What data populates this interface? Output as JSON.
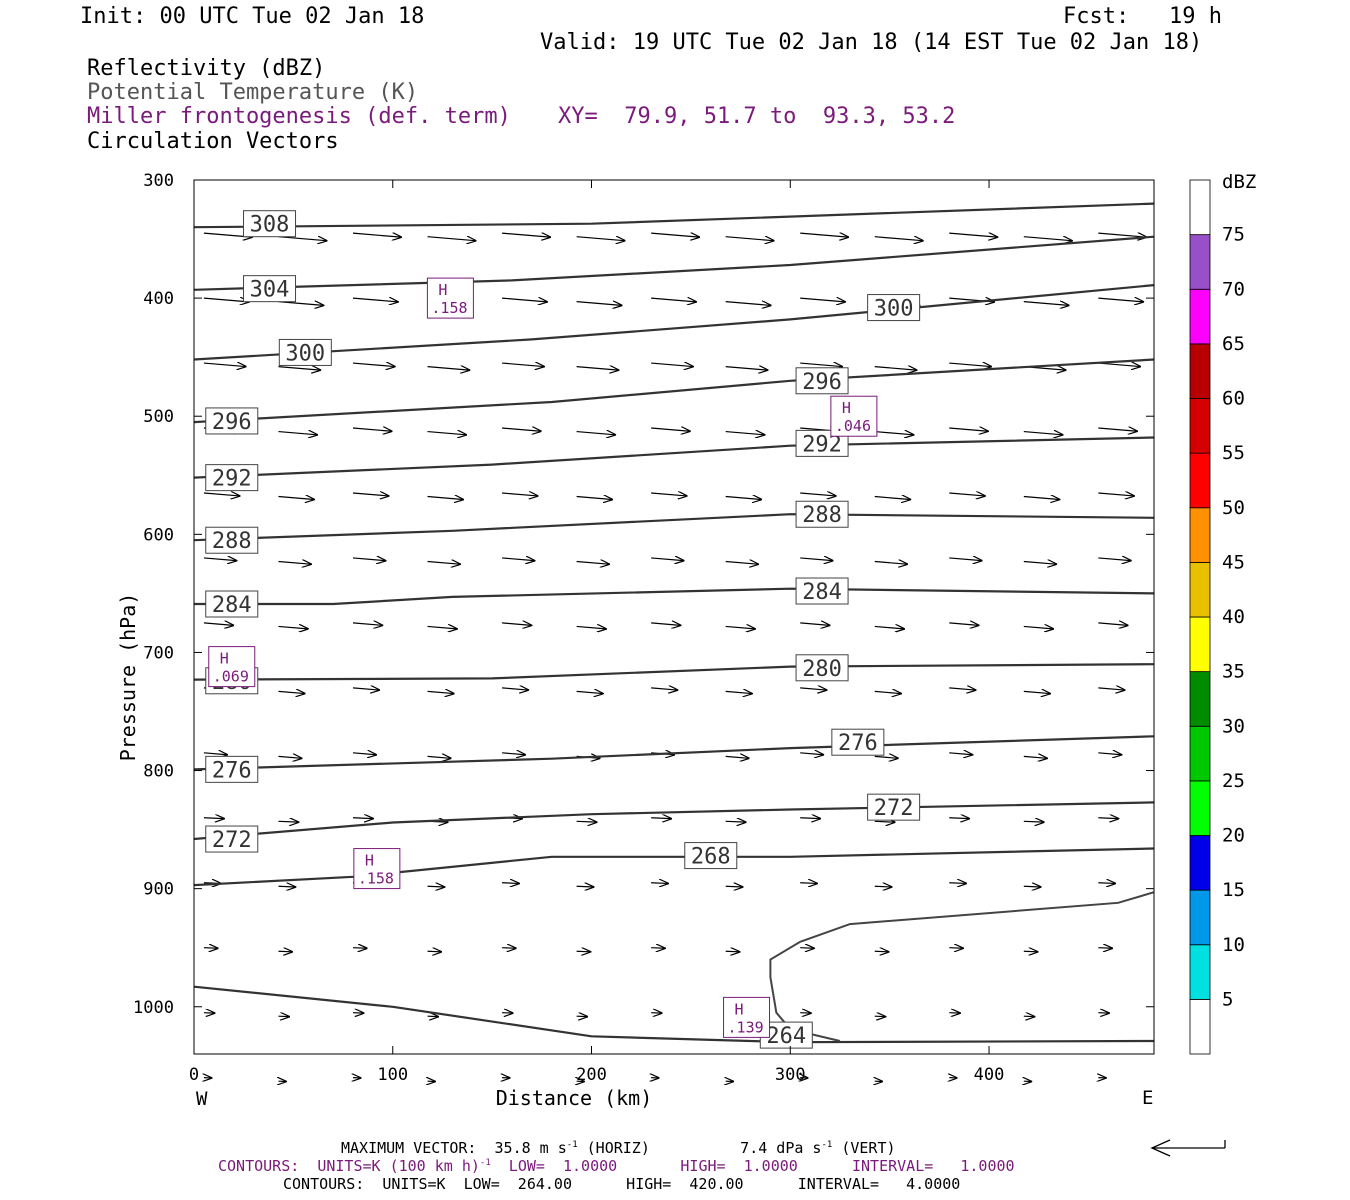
{
  "header": {
    "init": "Init: 00 UTC Tue 02 Jan 18",
    "fcst": "Fcst:   19 h",
    "valid": "Valid: 19 UTC Tue 02 Jan 18 (14 EST Tue 02 Jan 18)",
    "field1": "Reflectivity (dBZ)",
    "field2": "Potential Temperature (K)",
    "field3": "Miller frontogenesis (def. term)",
    "xy": "XY=  79.9, 51.7 to  93.3, 53.2",
    "field4": "Circulation Vectors"
  },
  "chart_data": {
    "type": "line",
    "xlabel": "Distance (km)",
    "ylabel": "Pressure (hPa)",
    "xlim": [
      0,
      483
    ],
    "ylim": [
      1040,
      300
    ],
    "x_ticks": [
      "0",
      "100",
      "200",
      "300",
      "400"
    ],
    "y_ticks": [
      "300",
      "400",
      "500",
      "600",
      "700",
      "800",
      "900",
      "1000"
    ],
    "x_end_labels": {
      "left": "W",
      "right": "E"
    },
    "series": [
      {
        "name": "308",
        "points": [
          [
            0,
            340
          ],
          [
            200,
            337
          ],
          [
            483,
            320
          ]
        ]
      },
      {
        "name": "304",
        "points": [
          [
            0,
            393
          ],
          [
            160,
            385
          ],
          [
            300,
            372
          ],
          [
            483,
            348
          ]
        ]
      },
      {
        "name": "300",
        "points": [
          [
            0,
            452
          ],
          [
            170,
            435
          ],
          [
            300,
            418
          ],
          [
            483,
            389
          ]
        ]
      },
      {
        "name": "296",
        "points": [
          [
            0,
            505
          ],
          [
            180,
            488
          ],
          [
            300,
            470
          ],
          [
            483,
            452
          ]
        ]
      },
      {
        "name": "292",
        "points": [
          [
            0,
            552
          ],
          [
            150,
            541
          ],
          [
            300,
            525
          ],
          [
            483,
            518
          ]
        ]
      },
      {
        "name": "288",
        "points": [
          [
            0,
            605
          ],
          [
            130,
            597
          ],
          [
            300,
            583
          ],
          [
            483,
            586
          ]
        ]
      },
      {
        "name": "284",
        "points": [
          [
            0,
            659
          ],
          [
            70,
            659
          ],
          [
            130,
            653
          ],
          [
            300,
            646
          ],
          [
            483,
            650
          ]
        ]
      },
      {
        "name": "280",
        "points": [
          [
            0,
            723
          ],
          [
            150,
            722
          ],
          [
            300,
            712
          ],
          [
            483,
            710
          ]
        ]
      },
      {
        "name": "276",
        "points": [
          [
            0,
            799
          ],
          [
            180,
            790
          ],
          [
            300,
            781
          ],
          [
            483,
            771
          ]
        ]
      },
      {
        "name": "272",
        "points": [
          [
            0,
            858
          ],
          [
            100,
            844
          ],
          [
            200,
            837
          ],
          [
            300,
            833
          ],
          [
            483,
            827
          ]
        ]
      },
      {
        "name": "268",
        "points": [
          [
            0,
            897
          ],
          [
            80,
            890
          ],
          [
            180,
            873
          ],
          [
            300,
            873
          ],
          [
            483,
            866
          ]
        ]
      },
      {
        "name": "264",
        "points": [
          [
            0,
            983
          ],
          [
            100,
            1000
          ],
          [
            200,
            1025
          ],
          [
            300,
            1030
          ],
          [
            483,
            1029
          ]
        ]
      }
    ],
    "contour_labels": [
      {
        "text": "308",
        "x": 38,
        "p": 337
      },
      {
        "text": "304",
        "x": 38,
        "p": 392
      },
      {
        "text": "300",
        "x": 56,
        "p": 446
      },
      {
        "text": "300",
        "x": 352,
        "p": 408
      },
      {
        "text": "296",
        "x": 19,
        "p": 504
      },
      {
        "text": "296",
        "x": 316,
        "p": 470
      },
      {
        "text": "292",
        "x": 19,
        "p": 552
      },
      {
        "text": "292",
        "x": 316,
        "p": 523
      },
      {
        "text": "288",
        "x": 19,
        "p": 605
      },
      {
        "text": "288",
        "x": 316,
        "p": 583
      },
      {
        "text": "284",
        "x": 19,
        "p": 659
      },
      {
        "text": "284",
        "x": 316,
        "p": 648
      },
      {
        "text": "280",
        "x": 19,
        "p": 724
      },
      {
        "text": "280",
        "x": 316,
        "p": 713
      },
      {
        "text": "276",
        "x": 19,
        "p": 799
      },
      {
        "text": "276",
        "x": 334,
        "p": 776
      },
      {
        "text": "272",
        "x": 19,
        "p": 858
      },
      {
        "text": "272",
        "x": 352,
        "p": 831
      },
      {
        "text": "268",
        "x": 260,
        "p": 872
      },
      {
        "text": "264",
        "x": 298,
        "p": 1024
      }
    ],
    "maxima": [
      {
        "label": "H",
        "value": ".158",
        "x": 129,
        "p": 400
      },
      {
        "label": "H",
        "value": ".046",
        "x": 332,
        "p": 500
      },
      {
        "label": "H",
        "value": ".069",
        "x": 19,
        "p": 712
      },
      {
        "label": "H",
        "value": ".158",
        "x": 92,
        "p": 883
      },
      {
        "label": "H",
        "value": ".139",
        "x": 278,
        "p": 1009
      }
    ],
    "colorbar": {
      "title": "dBZ",
      "levels": [
        "5",
        "10",
        "15",
        "20",
        "25",
        "30",
        "35",
        "40",
        "45",
        "50",
        "55",
        "60",
        "65",
        "70",
        "75"
      ],
      "colors": [
        "#ffffff",
        "#00e0e0",
        "#0098e8",
        "#0000e8",
        "#00ff00",
        "#00c800",
        "#008c00",
        "#ffff00",
        "#e8c000",
        "#ff9000",
        "#ff0000",
        "#d40000",
        "#b80000",
        "#ff00ff",
        "#9850c8",
        "#ffffff"
      ]
    }
  },
  "footer": {
    "max_vector_prefix": "MAXIMUM VECTOR:  35.8 m s",
    "max_vector_sup": "-1",
    "max_vector_mid": " (HORIZ)          7.4 dPa s",
    "max_vector_sup2": "-1",
    "max_vector_end": " (VERT)",
    "contours1_prefix": "CONTOURS:  UNITS=K (100 km h)",
    "contours1_sup": "-1",
    "contours1_end": "  LOW=  1.0000       HIGH=  1.0000      INTERVAL=   1.0000",
    "contours2": "CONTOURS:  UNITS=K  LOW=  264.00      HIGH=  420.00      INTERVAL=   4.0000"
  },
  "colors": {
    "contour": "#333333",
    "purple": "#7a1a7a",
    "frame": "#000000"
  }
}
